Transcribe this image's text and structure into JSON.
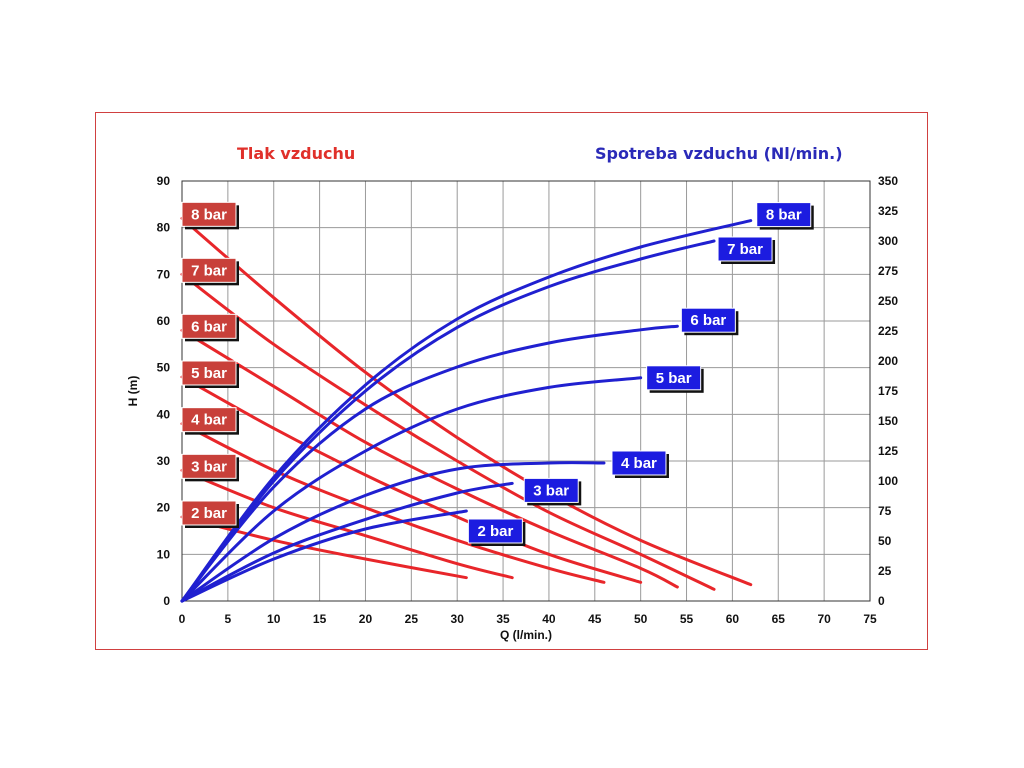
{
  "titles": {
    "left": "Tlak vzduchu",
    "right": "Spotreba vzduchu (Nl/min.)"
  },
  "colors": {
    "pressure": "#e8262a",
    "consumption": "#2020d0",
    "frame": "#d04040",
    "grid": "#9a9a9a",
    "red_label_bg": "#c8403a",
    "blue_label_bg": "#1c1ce0"
  },
  "chart_data": {
    "type": "line",
    "xlabel": "Q (l/min.)",
    "ylabel": "H (m)",
    "y2label": "",
    "xlim": [
      0,
      75
    ],
    "ylim": [
      0,
      90
    ],
    "y2lim": [
      0,
      350
    ],
    "xticks": [
      0,
      5,
      10,
      15,
      20,
      25,
      30,
      35,
      40,
      45,
      50,
      55,
      60,
      65,
      70,
      75
    ],
    "yticks": [
      0,
      10,
      20,
      30,
      40,
      50,
      60,
      70,
      80,
      90
    ],
    "y2ticks": [
      0,
      25,
      50,
      75,
      100,
      125,
      150,
      175,
      200,
      225,
      250,
      275,
      300,
      325,
      350
    ],
    "grid": true,
    "pressure_series": [
      {
        "name": "2 bar",
        "x": [
          0,
          10,
          20,
          31
        ],
        "y": [
          18,
          13,
          9,
          5
        ]
      },
      {
        "name": "3 bar",
        "x": [
          0,
          10,
          20,
          30,
          36
        ],
        "y": [
          28,
          20,
          14,
          8,
          5
        ]
      },
      {
        "name": "4 bar",
        "x": [
          0,
          10,
          20,
          30,
          40,
          46
        ],
        "y": [
          38,
          28,
          20,
          13,
          7,
          4
        ]
      },
      {
        "name": "5 bar",
        "x": [
          0,
          10,
          20,
          30,
          40,
          50
        ],
        "y": [
          48,
          37,
          27,
          18,
          10,
          4
        ]
      },
      {
        "name": "6 bar",
        "x": [
          0,
          10,
          20,
          30,
          40,
          50,
          54
        ],
        "y": [
          58,
          46,
          34,
          24,
          15,
          7,
          3
        ]
      },
      {
        "name": "7 bar",
        "x": [
          0,
          10,
          20,
          30,
          40,
          50,
          58
        ],
        "y": [
          70,
          55,
          42,
          30,
          19,
          10,
          2.5
        ]
      },
      {
        "name": "8 bar",
        "x": [
          0,
          10,
          20,
          30,
          40,
          50,
          62
        ],
        "y": [
          82,
          65,
          49,
          35,
          23,
          13,
          3.5
        ]
      }
    ],
    "consumption_series": [
      {
        "name": "2 bar",
        "x": [
          0,
          10,
          20,
          31
        ],
        "y2": [
          0,
          35,
          60,
          75
        ]
      },
      {
        "name": "3 bar",
        "x": [
          0,
          10,
          20,
          30,
          36
        ],
        "y2": [
          0,
          40,
          68,
          90,
          98
        ]
      },
      {
        "name": "4 bar",
        "x": [
          0,
          10,
          20,
          30,
          40,
          46
        ],
        "y2": [
          0,
          52,
          88,
          110,
          115,
          115
        ]
      },
      {
        "name": "5 bar",
        "x": [
          0,
          10,
          20,
          30,
          40,
          50
        ],
        "y2": [
          0,
          75,
          125,
          160,
          178,
          186
        ]
      },
      {
        "name": "6 bar",
        "x": [
          0,
          10,
          20,
          30,
          40,
          50,
          54
        ],
        "y2": [
          0,
          95,
          160,
          195,
          215,
          226,
          229
        ]
      },
      {
        "name": "7 bar",
        "x": [
          0,
          10,
          20,
          30,
          40,
          50,
          58
        ],
        "y2": [
          0,
          100,
          175,
          228,
          262,
          285,
          300
        ]
      },
      {
        "name": "8 bar",
        "x": [
          0,
          10,
          20,
          30,
          40,
          50,
          62
        ],
        "y2": [
          0,
          103,
          180,
          235,
          270,
          295,
          317
        ]
      }
    ]
  }
}
